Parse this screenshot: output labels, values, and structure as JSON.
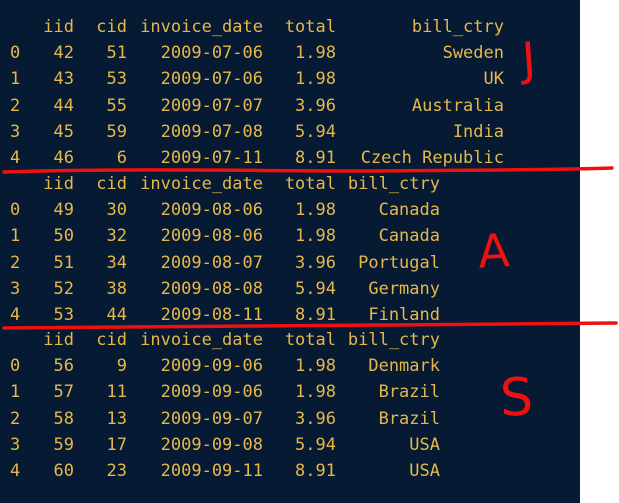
{
  "tables": [
    {
      "columns": [
        "iid",
        "cid",
        "invoice_date",
        "total",
        "bill_ctry"
      ],
      "rows": [
        {
          "idx": "0",
          "iid": "42",
          "cid": "51",
          "date": "2009-07-06",
          "total": "1.98",
          "ctry": "Sweden"
        },
        {
          "idx": "1",
          "iid": "43",
          "cid": "53",
          "date": "2009-07-06",
          "total": "1.98",
          "ctry": "UK"
        },
        {
          "idx": "2",
          "iid": "44",
          "cid": "55",
          "date": "2009-07-07",
          "total": "3.96",
          "ctry": "Australia"
        },
        {
          "idx": "3",
          "iid": "45",
          "cid": "59",
          "date": "2009-07-08",
          "total": "5.94",
          "ctry": "India"
        },
        {
          "idx": "4",
          "iid": "46",
          "cid": "6",
          "date": "2009-07-11",
          "total": "8.91",
          "ctry": "Czech Republic"
        }
      ]
    },
    {
      "columns": [
        "iid",
        "cid",
        "invoice_date",
        "total",
        "bill_ctry"
      ],
      "rows": [
        {
          "idx": "0",
          "iid": "49",
          "cid": "30",
          "date": "2009-08-06",
          "total": "1.98",
          "ctry": "Canada"
        },
        {
          "idx": "1",
          "iid": "50",
          "cid": "32",
          "date": "2009-08-06",
          "total": "1.98",
          "ctry": "Canada"
        },
        {
          "idx": "2",
          "iid": "51",
          "cid": "34",
          "date": "2009-08-07",
          "total": "3.96",
          "ctry": "Portugal"
        },
        {
          "idx": "3",
          "iid": "52",
          "cid": "38",
          "date": "2009-08-08",
          "total": "5.94",
          "ctry": "Germany"
        },
        {
          "idx": "4",
          "iid": "53",
          "cid": "44",
          "date": "2009-08-11",
          "total": "8.91",
          "ctry": "Finland"
        }
      ]
    },
    {
      "columns": [
        "iid",
        "cid",
        "invoice_date",
        "total",
        "bill_ctry"
      ],
      "rows": [
        {
          "idx": "0",
          "iid": "56",
          "cid": "9",
          "date": "2009-09-06",
          "total": "1.98",
          "ctry": "Denmark"
        },
        {
          "idx": "1",
          "iid": "57",
          "cid": "11",
          "date": "2009-09-06",
          "total": "1.98",
          "ctry": "Brazil"
        },
        {
          "idx": "2",
          "iid": "58",
          "cid": "13",
          "date": "2009-09-07",
          "total": "3.96",
          "ctry": "Brazil"
        },
        {
          "idx": "3",
          "iid": "59",
          "cid": "17",
          "date": "2009-09-08",
          "total": "5.94",
          "ctry": "USA"
        },
        {
          "idx": "4",
          "iid": "60",
          "cid": "23",
          "date": "2009-09-11",
          "total": "8.91",
          "ctry": "USA"
        }
      ]
    }
  ],
  "annotations": {
    "letters": [
      "J",
      "A",
      "S"
    ],
    "ink_color": "#ee1111"
  }
}
